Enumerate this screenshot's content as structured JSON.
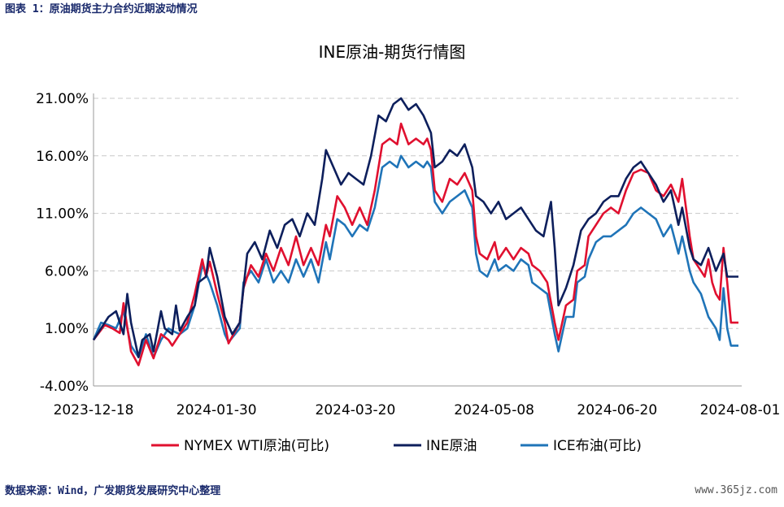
{
  "header": {
    "caption": "图表 1：原油期货主力合约近期波动情况"
  },
  "footer": {
    "source": "数据来源：Wind，广发期货发展研究中心整理",
    "watermark": "www.365jz.com"
  },
  "chart_data": {
    "type": "line",
    "title": "INE原油-期货行情图",
    "xlabel": "",
    "ylabel": "",
    "ylim": [
      -4,
      21
    ],
    "ytick_values": [
      -4,
      1,
      6,
      11,
      16,
      21
    ],
    "ytick_labels": [
      "-4.00%",
      "1.00%",
      "6.00%",
      "11.00%",
      "16.00%",
      "21.00%"
    ],
    "xtick_labels": [
      "2023-12-18",
      "2024-01-30",
      "2024-03-20",
      "2024-05-08",
      "2024-06-20",
      "2024-08-01"
    ],
    "xtick_index": [
      0,
      31,
      66,
      101,
      132,
      163
    ],
    "n_points": 163,
    "grid": true,
    "legend_position": "bottom",
    "series": [
      {
        "name": "NYMEX WTI原油(可比)",
        "color": "#e0102f",
        "keypoints": [
          [
            0,
            0.0
          ],
          [
            3,
            1.3
          ],
          [
            5,
            1.0
          ],
          [
            7,
            0.6
          ],
          [
            8,
            3.2
          ],
          [
            10,
            -1.0
          ],
          [
            12,
            -2.2
          ],
          [
            14,
            0.0
          ],
          [
            16,
            -1.6
          ],
          [
            18,
            0.5
          ],
          [
            20,
            0.0
          ],
          [
            21,
            -0.5
          ],
          [
            23,
            0.5
          ],
          [
            25,
            1.5
          ],
          [
            27,
            4.0
          ],
          [
            29,
            7.0
          ],
          [
            30,
            5.5
          ],
          [
            31,
            6.8
          ],
          [
            33,
            4.0
          ],
          [
            35,
            1.5
          ],
          [
            36,
            -0.3
          ],
          [
            39,
            1.5
          ],
          [
            40,
            4.5
          ],
          [
            42,
            6.5
          ],
          [
            44,
            5.5
          ],
          [
            46,
            7.5
          ],
          [
            48,
            6.0
          ],
          [
            50,
            8.0
          ],
          [
            52,
            6.5
          ],
          [
            54,
            9.0
          ],
          [
            56,
            6.5
          ],
          [
            58,
            8.0
          ],
          [
            60,
            6.5
          ],
          [
            62,
            10.0
          ],
          [
            63,
            9.0
          ],
          [
            65,
            12.5
          ],
          [
            67,
            11.5
          ],
          [
            69,
            10.0
          ],
          [
            71,
            11.5
          ],
          [
            73,
            10.0
          ],
          [
            75,
            13.0
          ],
          [
            77,
            17.0
          ],
          [
            79,
            17.5
          ],
          [
            81,
            17.0
          ],
          [
            82,
            18.8
          ],
          [
            84,
            17.0
          ],
          [
            86,
            17.5
          ],
          [
            88,
            17.0
          ],
          [
            89,
            17.5
          ],
          [
            90,
            16.5
          ],
          [
            91,
            13.0
          ],
          [
            93,
            12.0
          ],
          [
            95,
            14.0
          ],
          [
            97,
            13.5
          ],
          [
            99,
            14.5
          ],
          [
            101,
            13.0
          ],
          [
            102,
            9.0
          ],
          [
            103,
            7.5
          ],
          [
            105,
            7.0
          ],
          [
            107,
            8.5
          ],
          [
            108,
            7.0
          ],
          [
            110,
            8.0
          ],
          [
            112,
            7.0
          ],
          [
            114,
            8.0
          ],
          [
            116,
            7.5
          ],
          [
            117,
            6.5
          ],
          [
            119,
            6.0
          ],
          [
            121,
            5.0
          ],
          [
            123,
            1.5
          ],
          [
            124,
            0.0
          ],
          [
            126,
            3.0
          ],
          [
            128,
            3.5
          ],
          [
            129,
            6.0
          ],
          [
            131,
            6.5
          ],
          [
            132,
            9.0
          ],
          [
            134,
            10.0
          ],
          [
            136,
            11.0
          ],
          [
            138,
            11.5
          ],
          [
            140,
            11.0
          ],
          [
            142,
            13.0
          ],
          [
            144,
            14.5
          ],
          [
            146,
            14.8
          ],
          [
            148,
            14.5
          ],
          [
            150,
            13.0
          ],
          [
            152,
            12.5
          ],
          [
            154,
            13.5
          ],
          [
            156,
            12.0
          ],
          [
            157,
            14.0
          ],
          [
            159,
            9.0
          ],
          [
            160,
            7.0
          ],
          [
            161,
            6.5
          ],
          [
            163,
            5.5
          ],
          [
            164,
            7.0
          ],
          [
            165,
            5.0
          ],
          [
            166,
            4.0
          ],
          [
            167,
            3.5
          ],
          [
            168,
            8.0
          ],
          [
            169,
            5.0
          ],
          [
            170,
            1.5
          ],
          [
            172,
            1.5
          ]
        ]
      },
      {
        "name": "INE原油",
        "color": "#0d1f5c",
        "keypoints": [
          [
            0,
            0.0
          ],
          [
            2,
            1.0
          ],
          [
            4,
            2.0
          ],
          [
            6,
            2.5
          ],
          [
            8,
            0.5
          ],
          [
            9,
            4.0
          ],
          [
            10,
            1.5
          ],
          [
            12,
            -1.5
          ],
          [
            13,
            0.0
          ],
          [
            15,
            0.5
          ],
          [
            16,
            -1.0
          ],
          [
            18,
            2.5
          ],
          [
            19,
            1.0
          ],
          [
            21,
            0.5
          ],
          [
            22,
            3.0
          ],
          [
            23,
            0.8
          ],
          [
            25,
            2.0
          ],
          [
            27,
            3.0
          ],
          [
            28,
            5.0
          ],
          [
            30,
            5.5
          ],
          [
            31,
            8.0
          ],
          [
            33,
            5.5
          ],
          [
            35,
            2.0
          ],
          [
            37,
            0.5
          ],
          [
            39,
            1.5
          ],
          [
            41,
            7.5
          ],
          [
            43,
            8.5
          ],
          [
            45,
            7.0
          ],
          [
            47,
            9.5
          ],
          [
            49,
            8.0
          ],
          [
            51,
            10.0
          ],
          [
            53,
            10.5
          ],
          [
            55,
            9.0
          ],
          [
            57,
            11.0
          ],
          [
            59,
            10.0
          ],
          [
            61,
            14.0
          ],
          [
            62,
            16.5
          ],
          [
            64,
            15.0
          ],
          [
            66,
            13.5
          ],
          [
            68,
            14.5
          ],
          [
            70,
            14.0
          ],
          [
            72,
            13.5
          ],
          [
            74,
            16.0
          ],
          [
            76,
            19.5
          ],
          [
            78,
            19.0
          ],
          [
            80,
            20.5
          ],
          [
            82,
            21.0
          ],
          [
            84,
            20.0
          ],
          [
            86,
            20.5
          ],
          [
            88,
            19.5
          ],
          [
            90,
            18.0
          ],
          [
            91,
            15.0
          ],
          [
            93,
            15.5
          ],
          [
            95,
            16.5
          ],
          [
            97,
            16.0
          ],
          [
            99,
            17.0
          ],
          [
            101,
            15.0
          ],
          [
            102,
            12.5
          ],
          [
            104,
            12.0
          ],
          [
            106,
            11.0
          ],
          [
            108,
            12.0
          ],
          [
            110,
            10.5
          ],
          [
            112,
            11.0
          ],
          [
            114,
            11.5
          ],
          [
            116,
            10.5
          ],
          [
            118,
            9.5
          ],
          [
            120,
            9.0
          ],
          [
            122,
            12.0
          ],
          [
            123,
            8.0
          ],
          [
            124,
            3.0
          ],
          [
            126,
            4.5
          ],
          [
            128,
            6.5
          ],
          [
            130,
            9.5
          ],
          [
            132,
            10.5
          ],
          [
            134,
            11.0
          ],
          [
            136,
            12.0
          ],
          [
            138,
            12.5
          ],
          [
            140,
            12.5
          ],
          [
            142,
            14.0
          ],
          [
            144,
            15.0
          ],
          [
            146,
            15.5
          ],
          [
            148,
            14.5
          ],
          [
            150,
            13.5
          ],
          [
            152,
            12.0
          ],
          [
            154,
            13.0
          ],
          [
            156,
            10.0
          ],
          [
            157,
            11.5
          ],
          [
            159,
            8.0
          ],
          [
            160,
            7.0
          ],
          [
            162,
            6.5
          ],
          [
            164,
            8.0
          ],
          [
            166,
            6.0
          ],
          [
            168,
            7.5
          ],
          [
            169,
            5.5
          ],
          [
            172,
            5.5
          ]
        ]
      },
      {
        "name": "ICE布油(可比)",
        "color": "#1f74b8",
        "keypoints": [
          [
            0,
            0.0
          ],
          [
            2,
            1.5
          ],
          [
            4,
            1.3
          ],
          [
            6,
            1.0
          ],
          [
            8,
            2.5
          ],
          [
            10,
            -0.5
          ],
          [
            12,
            -1.5
          ],
          [
            14,
            0.5
          ],
          [
            16,
            -1.5
          ],
          [
            18,
            0.0
          ],
          [
            20,
            1.0
          ],
          [
            21,
            0.8
          ],
          [
            23,
            0.5
          ],
          [
            25,
            1.0
          ],
          [
            27,
            3.0
          ],
          [
            29,
            6.5
          ],
          [
            31,
            5.0
          ],
          [
            33,
            3.0
          ],
          [
            35,
            0.5
          ],
          [
            36,
            -0.2
          ],
          [
            39,
            1.0
          ],
          [
            40,
            5.0
          ],
          [
            42,
            6.0
          ],
          [
            44,
            5.0
          ],
          [
            46,
            7.0
          ],
          [
            48,
            5.0
          ],
          [
            50,
            6.0
          ],
          [
            52,
            5.0
          ],
          [
            54,
            7.0
          ],
          [
            56,
            5.5
          ],
          [
            58,
            7.0
          ],
          [
            60,
            5.0
          ],
          [
            62,
            8.5
          ],
          [
            63,
            7.0
          ],
          [
            65,
            10.5
          ],
          [
            67,
            10.0
          ],
          [
            69,
            9.0
          ],
          [
            71,
            10.0
          ],
          [
            73,
            9.5
          ],
          [
            75,
            11.5
          ],
          [
            77,
            15.0
          ],
          [
            79,
            15.5
          ],
          [
            81,
            15.0
          ],
          [
            82,
            16.0
          ],
          [
            84,
            15.0
          ],
          [
            86,
            15.5
          ],
          [
            88,
            15.0
          ],
          [
            89,
            15.5
          ],
          [
            90,
            15.0
          ],
          [
            91,
            12.0
          ],
          [
            93,
            11.0
          ],
          [
            95,
            12.0
          ],
          [
            97,
            12.5
          ],
          [
            99,
            13.0
          ],
          [
            101,
            11.5
          ],
          [
            102,
            7.5
          ],
          [
            103,
            6.0
          ],
          [
            105,
            5.5
          ],
          [
            107,
            7.0
          ],
          [
            108,
            6.0
          ],
          [
            110,
            6.5
          ],
          [
            112,
            6.0
          ],
          [
            114,
            7.0
          ],
          [
            116,
            6.5
          ],
          [
            117,
            5.0
          ],
          [
            119,
            4.5
          ],
          [
            121,
            4.0
          ],
          [
            123,
            0.5
          ],
          [
            124,
            -1.0
          ],
          [
            126,
            2.0
          ],
          [
            128,
            2.0
          ],
          [
            129,
            5.0
          ],
          [
            131,
            5.5
          ],
          [
            132,
            7.0
          ],
          [
            134,
            8.5
          ],
          [
            136,
            9.0
          ],
          [
            138,
            9.0
          ],
          [
            140,
            9.5
          ],
          [
            142,
            10.0
          ],
          [
            144,
            11.0
          ],
          [
            146,
            11.5
          ],
          [
            148,
            11.0
          ],
          [
            150,
            10.5
          ],
          [
            152,
            9.0
          ],
          [
            154,
            10.0
          ],
          [
            156,
            7.5
          ],
          [
            157,
            9.0
          ],
          [
            159,
            6.0
          ],
          [
            160,
            5.0
          ],
          [
            162,
            4.0
          ],
          [
            164,
            2.0
          ],
          [
            166,
            1.0
          ],
          [
            167,
            0.0
          ],
          [
            168,
            4.5
          ],
          [
            169,
            1.0
          ],
          [
            170,
            -0.5
          ],
          [
            172,
            -0.5
          ]
        ]
      }
    ]
  }
}
